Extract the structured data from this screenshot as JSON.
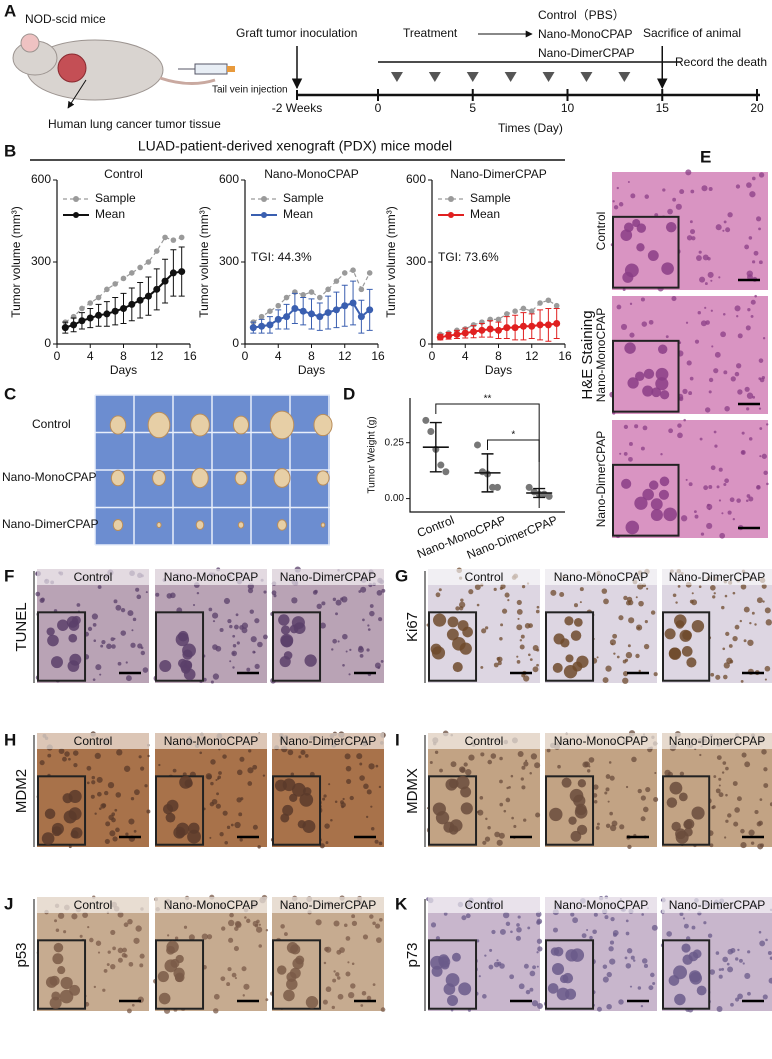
{
  "timeline": {
    "letter": "A",
    "model": "NOD-scid mice",
    "tissue": "Human lung cancer tumor tissue",
    "injection": "Tail vein injection",
    "inoculation": "Graft tumor inoculation",
    "treatment": "Treatment",
    "groups": [
      "Control（PBS）",
      "Nano-MonoCPAP",
      "Nano-DimerCPAP"
    ],
    "sacrifice": "Sacrifice of animal",
    "record": "Record the death",
    "start_label": "-2 Weeks",
    "ticks": [
      0,
      5,
      10,
      15,
      20
    ],
    "treatment_days": [
      1,
      3,
      5,
      7,
      9,
      11,
      13
    ],
    "sacrifice_day": 15,
    "xlabel": "Times (Day)"
  },
  "panel_b": {
    "letter": "B",
    "title": "LUAD-patient-derived xenograft (PDX) mice model"
  },
  "chart_data": [
    {
      "type": "line",
      "title": "Control",
      "xlabel": "Days",
      "ylabel": "Tumor volume (mm³)",
      "x": [
        1,
        2,
        3,
        4,
        5,
        6,
        7,
        8,
        9,
        10,
        11,
        12,
        13,
        14,
        15
      ],
      "xlim": [
        0,
        16
      ],
      "xticks": [
        0,
        4,
        8,
        12,
        16
      ],
      "ylim": [
        0,
        600
      ],
      "yticks": [
        0,
        300,
        600
      ],
      "legend": "upper left",
      "series": [
        {
          "name": "Sample",
          "color": "#9a9a9a",
          "values": [
            80,
            100,
            130,
            150,
            170,
            200,
            220,
            240,
            260,
            280,
            300,
            340,
            390,
            380,
            390
          ]
        },
        {
          "name": "Mean",
          "color": "#111111",
          "values": [
            60,
            70,
            85,
            95,
            105,
            110,
            120,
            130,
            145,
            160,
            175,
            200,
            230,
            260,
            265
          ],
          "errors": [
            20,
            25,
            30,
            35,
            40,
            45,
            50,
            55,
            60,
            65,
            70,
            75,
            80,
            85,
            90
          ]
        }
      ]
    },
    {
      "type": "line",
      "title": "Nano-MonoCPAP",
      "xlabel": "Days",
      "ylabel": "Tumor volume (mm³)",
      "annotation": "TGI: 44.3%",
      "x": [
        1,
        2,
        3,
        4,
        5,
        6,
        7,
        8,
        9,
        10,
        11,
        12,
        13,
        14,
        15
      ],
      "xlim": [
        0,
        16
      ],
      "xticks": [
        0,
        4,
        8,
        12,
        16
      ],
      "ylim": [
        0,
        600
      ],
      "yticks": [
        0,
        300,
        600
      ],
      "legend": "upper left",
      "series": [
        {
          "name": "Sample",
          "color": "#9a9a9a",
          "values": [
            80,
            100,
            120,
            140,
            170,
            190,
            180,
            190,
            170,
            200,
            230,
            260,
            270,
            200,
            260
          ]
        },
        {
          "name": "Mean",
          "color": "#3a5fb0",
          "values": [
            60,
            65,
            70,
            90,
            100,
            130,
            120,
            110,
            100,
            115,
            125,
            140,
            150,
            100,
            125
          ],
          "errors": [
            20,
            25,
            30,
            35,
            45,
            55,
            50,
            55,
            50,
            60,
            65,
            75,
            80,
            60,
            75
          ]
        }
      ]
    },
    {
      "type": "line",
      "title": "Nano-DimerCPAP",
      "xlabel": "Days",
      "ylabel": "Tumor volume (mm³)",
      "annotation": "TGI: 73.6%",
      "x": [
        1,
        2,
        3,
        4,
        5,
        6,
        7,
        8,
        9,
        10,
        11,
        12,
        13,
        14,
        15
      ],
      "xlim": [
        0,
        16
      ],
      "xticks": [
        0,
        4,
        8,
        12,
        16
      ],
      "ylim": [
        0,
        600
      ],
      "yticks": [
        0,
        300,
        600
      ],
      "legend": "upper left",
      "series": [
        {
          "name": "Sample",
          "color": "#9a9a9a",
          "values": [
            35,
            40,
            50,
            55,
            70,
            80,
            90,
            90,
            110,
            120,
            130,
            120,
            150,
            160,
            140
          ]
        },
        {
          "name": "Mean",
          "color": "#e02020",
          "values": [
            25,
            30,
            35,
            40,
            45,
            50,
            55,
            50,
            60,
            60,
            65,
            65,
            70,
            70,
            75
          ],
          "errors": [
            10,
            12,
            15,
            18,
            22,
            25,
            30,
            30,
            40,
            45,
            50,
            45,
            55,
            60,
            55
          ]
        }
      ]
    },
    {
      "type": "dot",
      "letter": "D",
      "ylabel": "Tumor Weight (g)",
      "categories": [
        "Control",
        "Nano-MonoCPAP",
        "Nano-DimerCPAP"
      ],
      "points": [
        [
          0.35,
          0.3,
          0.22,
          0.15,
          0.12
        ],
        [
          0.24,
          0.12,
          0.11,
          0.05,
          0.05
        ],
        [
          0.05,
          0.03,
          0.02,
          0.02,
          0.01
        ]
      ],
      "means": [
        0.23,
        0.115,
        0.025
      ],
      "sds": [
        0.11,
        0.085,
        0.02
      ],
      "ylim": [
        -0.06,
        0.45
      ],
      "yticks": [
        {
          "value": 0,
          "label": "0.00"
        },
        {
          "value": 0.25,
          "label": "0.25"
        }
      ],
      "significance": [
        {
          "text": "**",
          "from": 0,
          "to": 2
        },
        {
          "text": "*",
          "from": 1,
          "to": 2
        }
      ]
    }
  ],
  "panel_c": {
    "letter": "C",
    "rows": [
      "Control",
      "Nano-MonoCPAP",
      "Nano-DimerCPAP"
    ]
  },
  "panel_e": {
    "letter": "E",
    "title": "H&E Staining",
    "rows": [
      "Control",
      "Nano-MonoCPAP",
      "Nano-DimerCPAP"
    ]
  },
  "ihc": [
    {
      "letter": "F",
      "marker": "TUNEL",
      "groups": [
        "Control",
        "Nano-MonoCPAP",
        "Nano-DimerCPAP"
      ]
    },
    {
      "letter": "G",
      "marker": "Ki67",
      "groups": [
        "Control",
        "Nano-MonoCPAP",
        "Nano-DimerCPAP"
      ]
    },
    {
      "letter": "H",
      "marker": "MDM2",
      "groups": [
        "Control",
        "Nano-MonoCPAP",
        "Nano-DimerCPAP"
      ]
    },
    {
      "letter": "I",
      "marker": "MDMX",
      "groups": [
        "Control",
        "Nano-MonoCPAP",
        "Nano-DimerCPAP"
      ]
    },
    {
      "letter": "J",
      "marker": "p53",
      "groups": [
        "Control",
        "Nano-MonoCPAP",
        "Nano-DimerCPAP"
      ]
    },
    {
      "letter": "K",
      "marker": "p73",
      "groups": [
        "Control",
        "Nano-MonoCPAP",
        "Nano-DimerCPAP"
      ]
    }
  ]
}
